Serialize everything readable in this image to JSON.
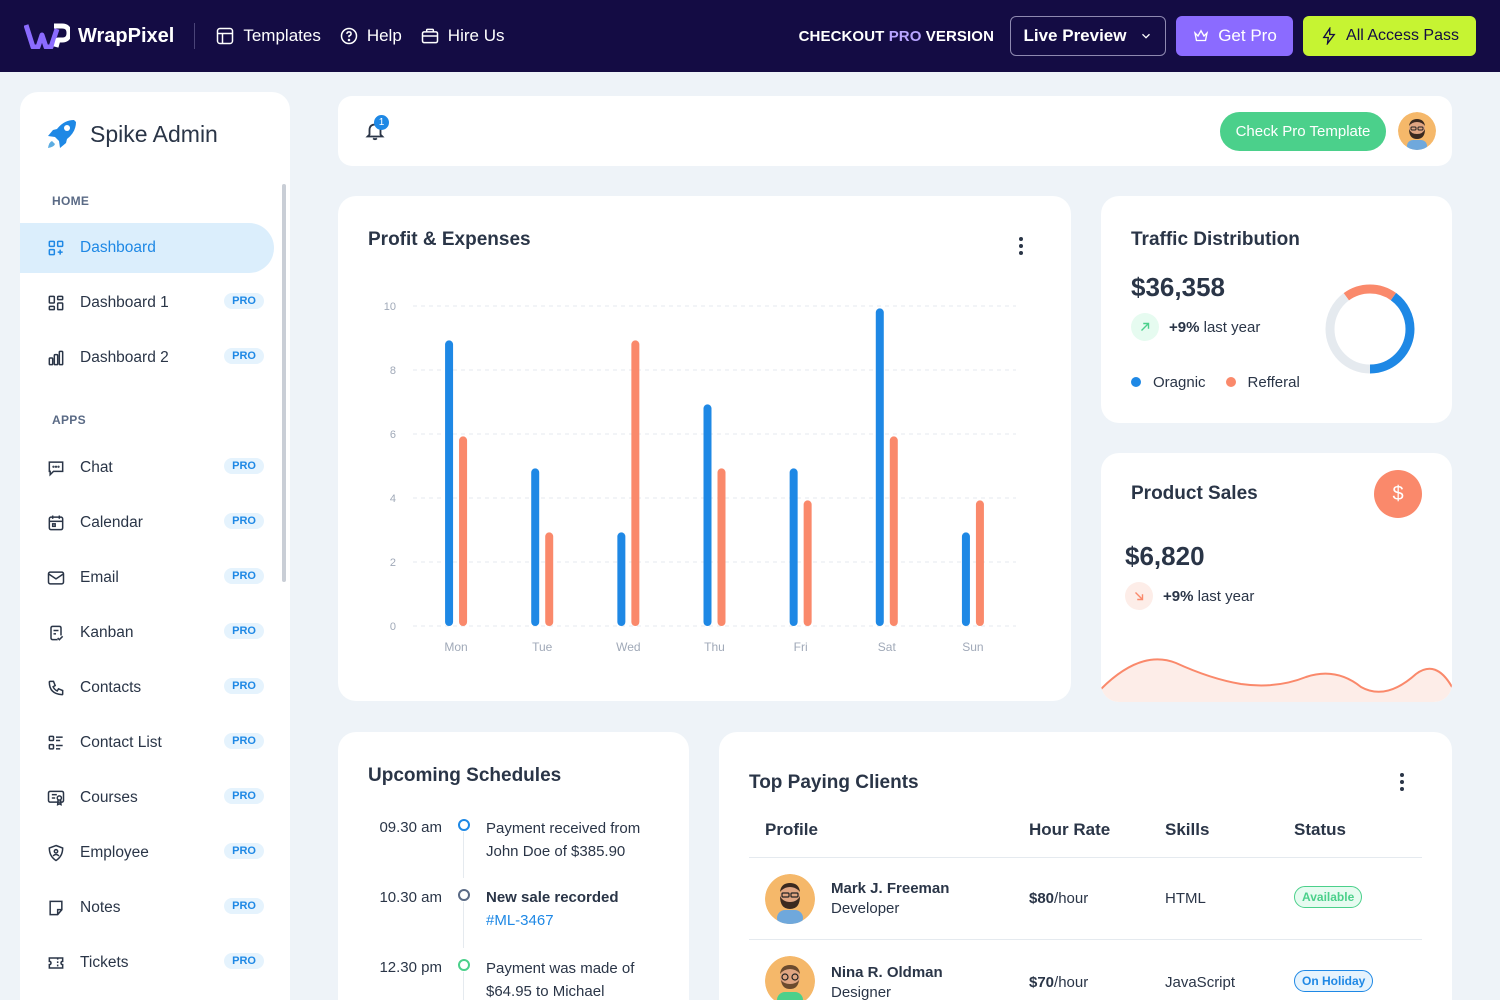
{
  "topbar": {
    "brand": "WrapPixel",
    "nav": [
      {
        "label": "Templates",
        "icon": "template-icon"
      },
      {
        "label": "Help",
        "icon": "help-circle-icon"
      },
      {
        "label": "Hire Us",
        "icon": "briefcase-icon"
      }
    ],
    "checkout_prefix": "CHECKOUT",
    "checkout_pro": "PRO",
    "checkout_suffix": "VERSION",
    "live_preview": "Live Preview",
    "get_pro": "Get Pro",
    "all_access": "All Access Pass"
  },
  "sidebar": {
    "app_name": "Spike Admin",
    "sections": {
      "home": "HOME",
      "apps": "APPS"
    },
    "badge": "PRO",
    "home_items": [
      {
        "label": "Dashboard",
        "active": true
      },
      {
        "label": "Dashboard 1",
        "pro": true
      },
      {
        "label": "Dashboard 2",
        "pro": true
      }
    ],
    "app_items": [
      {
        "label": "Chat"
      },
      {
        "label": "Calendar"
      },
      {
        "label": "Email"
      },
      {
        "label": "Kanban"
      },
      {
        "label": "Contacts"
      },
      {
        "label": "Contact List"
      },
      {
        "label": "Courses"
      },
      {
        "label": "Employee"
      },
      {
        "label": "Notes"
      },
      {
        "label": "Tickets"
      }
    ]
  },
  "header": {
    "notifications": "1",
    "check_pro": "Check Pro Template"
  },
  "profit": {
    "title": "Profit & Expenses"
  },
  "chart_data": {
    "type": "bar",
    "title": "Profit & Expenses",
    "categories": [
      "Mon",
      "Tue",
      "Wed",
      "Thu",
      "Fri",
      "Sat",
      "Sun"
    ],
    "series": [
      {
        "values": [
          8.8,
          4.8,
          2.8,
          6.8,
          4.8,
          9.8,
          2.8
        ],
        "color": "#1e88e5"
      },
      {
        "values": [
          5.8,
          2.8,
          8.8,
          4.8,
          3.8,
          5.8,
          3.8
        ],
        "color": "#fa896b"
      }
    ],
    "ylim": [
      0,
      10
    ],
    "yticks": [
      "0",
      "2",
      "4",
      "6",
      "8",
      "10"
    ],
    "grid": true
  },
  "traffic": {
    "title": "Traffic Distribution",
    "amount": "$36,358",
    "trend_value": "+9%",
    "trend_text": "last year",
    "legend": [
      {
        "label": "Oragnic",
        "color": "#1e88e5"
      },
      {
        "label": "Refferal",
        "color": "#fa896b"
      }
    ],
    "donut": {
      "organic": 0.4,
      "referral": 0.2,
      "rest": 0.4,
      "rest_color": "#e5eaef"
    }
  },
  "sales": {
    "title": "Product Sales",
    "amount": "$6,820",
    "trend_value": "+9%",
    "trend_text": "last year",
    "accent": "#fa896b"
  },
  "schedules": {
    "title": "Upcoming Schedules",
    "items": [
      {
        "time": "09.30 am",
        "line1": "Payment received from",
        "line2": "John Doe of $385.90",
        "dot": "#1e88e5"
      },
      {
        "time": "10.30 am",
        "line1": "New sale recorded",
        "line2": "#ML-3467",
        "dot": "#5a6a85"
      },
      {
        "time": "12.30 pm",
        "line1": "Payment was made of",
        "line2": "$64.95 to Michael",
        "dot": "#4bd08b"
      }
    ]
  },
  "clients": {
    "title": "Top Paying Clients",
    "columns": [
      "Profile",
      "Hour Rate",
      "Skills",
      "Status"
    ],
    "rows": [
      {
        "name": "Mark J. Freeman",
        "role": "Developer",
        "rate": "$80",
        "unit": "/hour",
        "skill": "HTML",
        "status": "Available",
        "status_color": "#4bd08b",
        "status_bg": "#e6fbf0"
      },
      {
        "name": "Nina R. Oldman",
        "role": "Designer",
        "rate": "$70",
        "unit": "/hour",
        "skill": "JavaScript",
        "status": "On Holiday",
        "status_color": "#1e88e5",
        "status_bg": "#e5f3fd"
      }
    ]
  }
}
